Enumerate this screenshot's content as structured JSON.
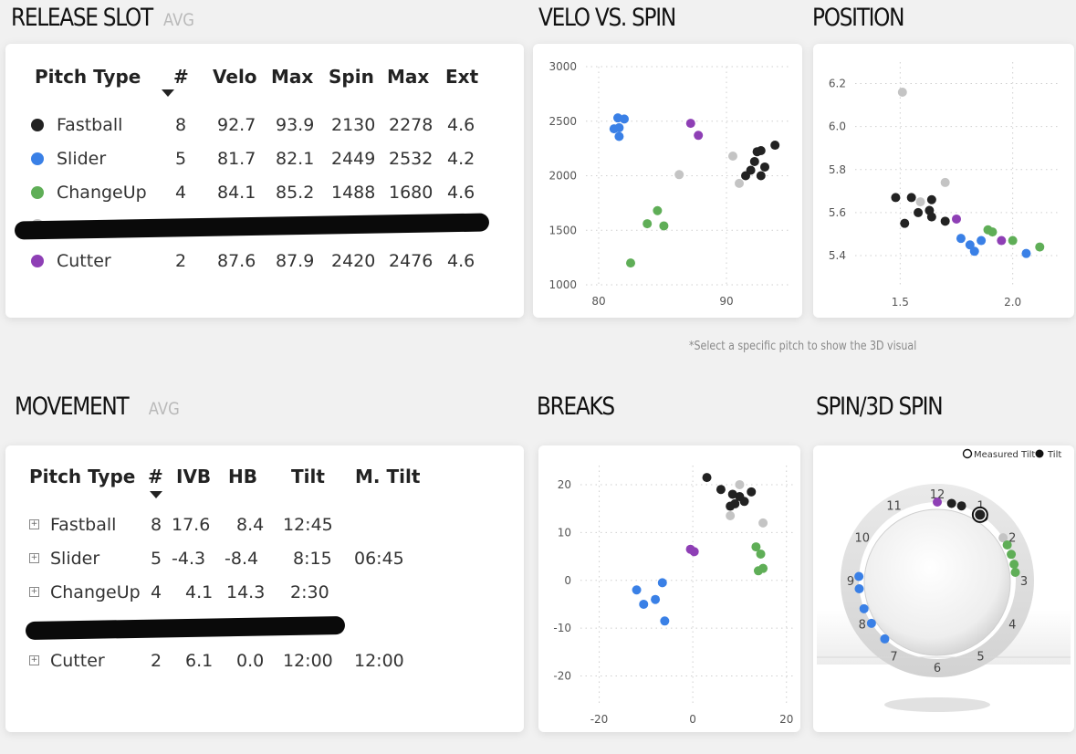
{
  "release_slot": {
    "title": "RELEASE SLOT",
    "subtitle": "AVG",
    "headers": [
      "Pitch Type",
      "#",
      "Velo",
      "Max",
      "Spin",
      "Max",
      "Ext"
    ],
    "rows": [
      {
        "type": "Fastball",
        "color": "#222222",
        "n": "8",
        "velo": "92.7",
        "velo_max": "93.9",
        "spin": "2130",
        "spin_max": "2278",
        "ext": "4.6"
      },
      {
        "type": "Slider",
        "color": "#3a80e6",
        "n": "5",
        "velo": "81.7",
        "velo_max": "82.1",
        "spin": "2449",
        "spin_max": "2532",
        "ext": "4.2"
      },
      {
        "type": "ChangeUp",
        "color": "#5fae57",
        "n": "4",
        "velo": "84.1",
        "velo_max": "85.2",
        "spin": "1488",
        "spin_max": "1680",
        "ext": "4.6"
      },
      {
        "type": "Cutter",
        "color": "#8e3fb5",
        "n": "2",
        "velo": "87.6",
        "velo_max": "87.9",
        "spin": "2420",
        "spin_max": "2476",
        "ext": "4.6"
      }
    ]
  },
  "velo_spin": {
    "title": "VELO VS. SPIN",
    "chart_data": {
      "type": "scatter",
      "title": "VELO VS. SPIN",
      "xlim": [
        79,
        95
      ],
      "ylim": [
        1000,
        3000
      ],
      "x_ticks": [
        "80",
        "90"
      ],
      "y_ticks": [
        "1000",
        "1500",
        "2000",
        "2500",
        "3000"
      ],
      "x_tick_values": [
        80,
        90
      ],
      "y_tick_values": [
        1000,
        1500,
        2000,
        2500,
        3000
      ],
      "series": [
        {
          "name": "Fastball",
          "color": "#222222",
          "points": [
            [
              92.4,
              2220
            ],
            [
              92.7,
              2230
            ],
            [
              93.8,
              2280
            ],
            [
              92.2,
              2130
            ],
            [
              91.9,
              2050
            ],
            [
              93.0,
              2080
            ],
            [
              92.7,
              2000
            ],
            [
              91.5,
              2000
            ]
          ]
        },
        {
          "name": "Slider",
          "color": "#3a80e6",
          "points": [
            [
              81.5,
              2530
            ],
            [
              82.0,
              2520
            ],
            [
              81.2,
              2430
            ],
            [
              81.6,
              2440
            ],
            [
              81.6,
              2360
            ]
          ]
        },
        {
          "name": "ChangeUp",
          "color": "#5fae57",
          "points": [
            [
              84.6,
              1680
            ],
            [
              83.8,
              1560
            ],
            [
              85.1,
              1540
            ],
            [
              82.5,
              1200
            ]
          ]
        },
        {
          "name": "Cutter",
          "color": "#8e3fb5",
          "points": [
            [
              87.2,
              2480
            ],
            [
              87.8,
              2370
            ]
          ]
        },
        {
          "name": "Other",
          "color": "#c4c4c4",
          "points": [
            [
              86.3,
              2010
            ],
            [
              90.5,
              2180
            ],
            [
              91.0,
              1930
            ]
          ]
        }
      ]
    }
  },
  "position": {
    "title": "POSITION",
    "chart_data": {
      "type": "scatter",
      "title": "POSITION",
      "xlim": [
        1.3,
        2.2
      ],
      "ylim": [
        5.26,
        6.3
      ],
      "x_ticks": [
        "1.5",
        "2.0"
      ],
      "y_ticks": [
        "5.4",
        "5.6",
        "5.8",
        "6.0",
        "6.2"
      ],
      "x_tick_values": [
        1.5,
        2.0
      ],
      "y_tick_values": [
        5.4,
        5.6,
        5.8,
        6.0,
        6.2
      ],
      "series": [
        {
          "name": "Fastball",
          "color": "#222222",
          "points": [
            [
              1.48,
              5.67
            ],
            [
              1.55,
              5.67
            ],
            [
              1.52,
              5.55
            ],
            [
              1.58,
              5.6
            ],
            [
              1.64,
              5.66
            ],
            [
              1.63,
              5.61
            ],
            [
              1.64,
              5.58
            ],
            [
              1.7,
              5.56
            ]
          ]
        },
        {
          "name": "Slider",
          "color": "#3a80e6",
          "points": [
            [
              1.77,
              5.48
            ],
            [
              1.81,
              5.45
            ],
            [
              1.86,
              5.47
            ],
            [
              1.83,
              5.42
            ],
            [
              2.06,
              5.41
            ]
          ]
        },
        {
          "name": "ChangeUp",
          "color": "#5fae57",
          "points": [
            [
              1.89,
              5.52
            ],
            [
              1.91,
              5.51
            ],
            [
              2.0,
              5.47
            ],
            [
              2.12,
              5.44
            ]
          ]
        },
        {
          "name": "Cutter",
          "color": "#8e3fb5",
          "points": [
            [
              1.75,
              5.57
            ],
            [
              1.95,
              5.47
            ]
          ]
        },
        {
          "name": "Other",
          "color": "#c4c4c4",
          "points": [
            [
              1.51,
              6.16
            ],
            [
              1.59,
              5.65
            ],
            [
              1.7,
              5.74
            ]
          ]
        }
      ]
    }
  },
  "note": "*Select a specific pitch to show the 3D visual",
  "movement": {
    "title": "MOVEMENT",
    "subtitle": "AVG",
    "headers": [
      "Pitch Type",
      "#",
      "IVB",
      "HB",
      "Tilt",
      "M. Tilt"
    ],
    "rows": [
      {
        "type": "Fastball",
        "n": "8",
        "ivb": "17.6",
        "hb": "8.4",
        "tilt": "12:45",
        "mtilt": ""
      },
      {
        "type": "Slider",
        "n": "5",
        "ivb": "-4.3",
        "hb": "-8.4",
        "tilt": "8:15",
        "mtilt": "06:45"
      },
      {
        "type": "ChangeUp",
        "n": "4",
        "ivb": "4.1",
        "hb": "14.3",
        "tilt": "2:30",
        "mtilt": ""
      },
      {
        "type": "Cutter",
        "n": "2",
        "ivb": "6.1",
        "hb": "0.0",
        "tilt": "12:00",
        "mtilt": "12:00"
      }
    ]
  },
  "breaks": {
    "title": "BREAKS",
    "chart_data": {
      "type": "scatter",
      "title": "BREAKS",
      "xlim": [
        -24,
        22
      ],
      "ylim": [
        -26,
        24
      ],
      "x_ticks": [
        "-20",
        "0",
        "20"
      ],
      "y_ticks": [
        "-20",
        "-10",
        "0",
        "10",
        "20"
      ],
      "x_tick_values": [
        -20,
        0,
        20
      ],
      "y_tick_values": [
        -20,
        -10,
        0,
        10,
        20
      ],
      "series": [
        {
          "name": "Fastball",
          "color": "#222222",
          "points": [
            [
              3,
              21.5
            ],
            [
              6,
              19
            ],
            [
              8.5,
              18
            ],
            [
              10,
              17.5
            ],
            [
              9,
              16
            ],
            [
              11,
              16.5
            ],
            [
              12.5,
              18.5
            ],
            [
              8,
              15.5
            ]
          ]
        },
        {
          "name": "Slider",
          "color": "#3a80e6",
          "points": [
            [
              -12,
              -2
            ],
            [
              -10.5,
              -5
            ],
            [
              -8,
              -4
            ],
            [
              -6.5,
              -0.5
            ],
            [
              -6,
              -8.5
            ]
          ]
        },
        {
          "name": "ChangeUp",
          "color": "#5fae57",
          "points": [
            [
              13.5,
              7
            ],
            [
              14.5,
              5.5
            ],
            [
              15,
              2.5
            ],
            [
              14,
              2
            ]
          ]
        },
        {
          "name": "Cutter",
          "color": "#8e3fb5",
          "points": [
            [
              -0.5,
              6.5
            ],
            [
              0.3,
              6
            ]
          ]
        },
        {
          "name": "Other",
          "color": "#c4c4c4",
          "points": [
            [
              10,
              20
            ],
            [
              8,
              13.5
            ],
            [
              15,
              12
            ]
          ]
        }
      ]
    }
  },
  "spin3d": {
    "title": "SPIN/3D SPIN",
    "legend": [
      {
        "label": "Measured Tilt",
        "fill": "#ffffff",
        "stroke": "#111111"
      },
      {
        "label": "Tilt",
        "fill": "#111111",
        "stroke": "#111111"
      }
    ],
    "hours": [
      "12",
      "1",
      "2",
      "3",
      "4",
      "5",
      "6",
      "7",
      "8",
      "9",
      "10",
      "11"
    ]
  },
  "colors": {
    "fastball": "#222222",
    "slider": "#3a80e6",
    "changeup": "#5fae57",
    "cutter": "#8e3fb5",
    "other": "#c4c4c4"
  }
}
